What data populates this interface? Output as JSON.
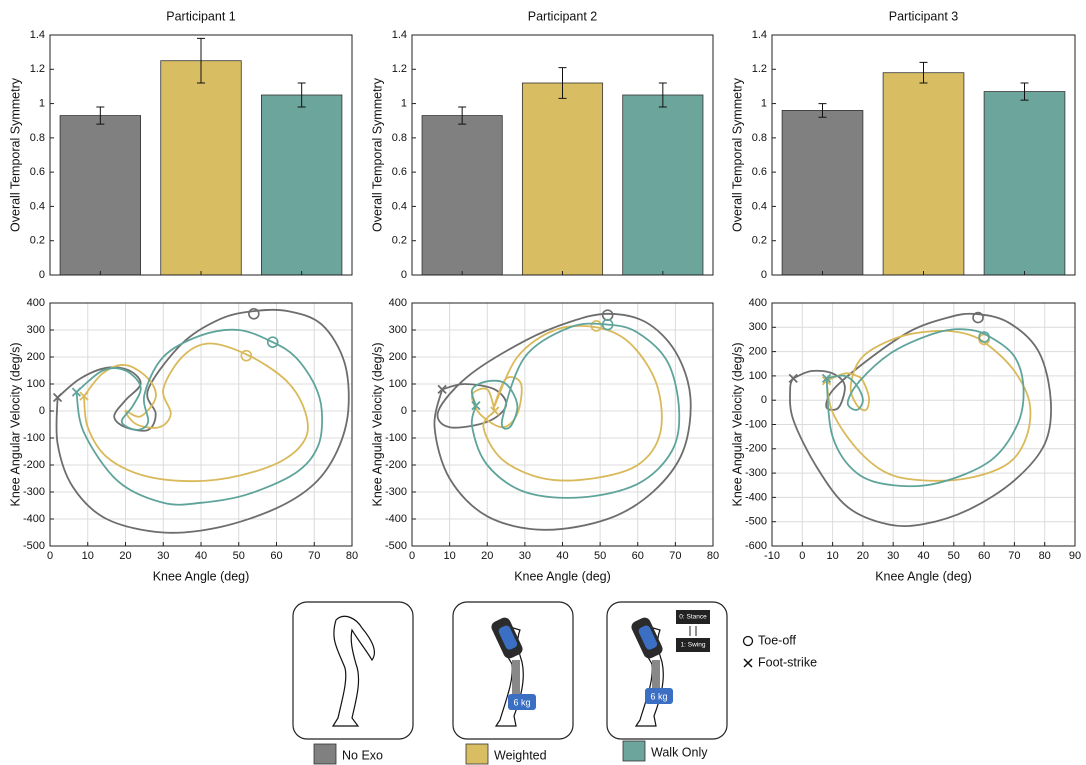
{
  "chart_data": [
    {
      "type": "bar",
      "title": "Participant 1",
      "ylabel": "Overall Temporal Symmetry",
      "categories": [
        null,
        null,
        null
      ],
      "values": [
        0.93,
        1.25,
        1.05
      ],
      "errors": [
        0.05,
        0.13,
        0.07
      ],
      "colors": [
        "#808080",
        "#d8bd62",
        "#6ba59c"
      ],
      "ylim": [
        0,
        1.4
      ],
      "yticks": [
        0,
        0.2,
        0.4,
        0.6,
        0.8,
        1,
        1.2,
        1.4
      ]
    },
    {
      "type": "bar",
      "title": "Participant 2",
      "ylabel": "Overall Temporal Symmetry",
      "categories": [
        null,
        null,
        null
      ],
      "values": [
        0.93,
        1.12,
        1.05
      ],
      "errors": [
        0.05,
        0.09,
        0.07
      ],
      "colors": [
        "#808080",
        "#d8bd62",
        "#6ba59c"
      ],
      "ylim": [
        0,
        1.4
      ],
      "yticks": [
        0,
        0.2,
        0.4,
        0.6,
        0.8,
        1,
        1.2,
        1.4
      ]
    },
    {
      "type": "bar",
      "title": "Participant 3",
      "ylabel": "Overall Temporal Symmetry",
      "categories": [
        null,
        null,
        null
      ],
      "values": [
        0.96,
        1.18,
        1.07
      ],
      "errors": [
        0.04,
        0.06,
        0.05
      ],
      "colors": [
        "#808080",
        "#d8bd62",
        "#6ba59c"
      ],
      "ylim": [
        0,
        1.4
      ],
      "yticks": [
        0,
        0.2,
        0.4,
        0.6,
        0.8,
        1,
        1.2,
        1.4
      ]
    },
    {
      "type": "line",
      "xlabel": "Knee Angle (deg)",
      "ylabel": "Knee Angular Velocity (deg/s)",
      "grid": true,
      "xlim": [
        0,
        80
      ],
      "xticks": [
        0,
        10,
        20,
        30,
        40,
        50,
        60,
        70,
        80
      ],
      "ylim": [
        -500,
        400
      ],
      "yticks": [
        -500,
        -400,
        -300,
        -200,
        -100,
        0,
        100,
        200,
        300,
        400
      ],
      "series": [
        {
          "color": "#6d6d6d",
          "x": [
            2,
            8,
            15,
            21,
            24,
            20,
            17,
            20,
            26,
            28,
            26,
            35,
            45,
            54,
            63,
            72,
            78,
            79,
            76,
            70,
            60,
            45,
            30,
            15,
            6,
            2,
            2
          ],
          "values": [
            50,
            120,
            160,
            150,
            100,
            40,
            -20,
            -60,
            -70,
            -10,
            80,
            250,
            340,
            370,
            370,
            320,
            180,
            0,
            -150,
            -270,
            -360,
            -430,
            -450,
            -400,
            -280,
            -120,
            50
          ],
          "toe_off": {
            "x": 54,
            "y": 360
          },
          "foot_strike": {
            "x": 2,
            "y": 50
          }
        },
        {
          "color": "#d9b95a",
          "x": [
            9,
            14,
            20,
            26,
            28,
            24,
            20,
            23,
            29,
            32,
            30,
            35,
            42,
            52,
            62,
            67,
            68,
            62,
            50,
            38,
            25,
            15,
            10,
            9
          ],
          "values": [
            55,
            140,
            170,
            120,
            50,
            -20,
            0,
            -50,
            -60,
            -10,
            80,
            200,
            250,
            210,
            120,
            20,
            -90,
            -180,
            -240,
            -260,
            -240,
            -170,
            -60,
            55
          ],
          "toe_off": {
            "x": 52,
            "y": 205
          },
          "foot_strike": {
            "x": 9,
            "y": 55
          }
        },
        {
          "color": "#5fa49b",
          "x": [
            7,
            14,
            20,
            24,
            22,
            19,
            23,
            26,
            25,
            30,
            40,
            50,
            59,
            65,
            70,
            72,
            71,
            65,
            52,
            40,
            30,
            18,
            9,
            7
          ],
          "values": [
            70,
            150,
            150,
            90,
            20,
            -40,
            -70,
            -40,
            60,
            200,
            280,
            300,
            255,
            200,
            100,
            0,
            -130,
            -230,
            -310,
            -340,
            -340,
            -260,
            -80,
            70
          ],
          "toe_off": {
            "x": 59,
            "y": 255
          },
          "foot_strike": {
            "x": 7,
            "y": 70
          }
        }
      ]
    },
    {
      "type": "line",
      "xlabel": "Knee Angle (deg)",
      "ylabel": "Knee Angular Velocity (deg/s)",
      "grid": true,
      "xlim": [
        0,
        80
      ],
      "xticks": [
        0,
        10,
        20,
        30,
        40,
        50,
        60,
        70,
        80
      ],
      "ylim": [
        -500,
        400
      ],
      "yticks": [
        -500,
        -400,
        -300,
        -200,
        -100,
        0,
        100,
        200,
        300,
        400
      ],
      "series": [
        {
          "color": "#6d6d6d",
          "x": [
            8,
            14,
            22,
            25,
            20,
            10,
            7,
            15,
            30,
            42,
            52,
            62,
            70,
            74,
            72,
            64,
            52,
            35,
            20,
            10,
            6,
            8
          ],
          "values": [
            80,
            100,
            80,
            20,
            -40,
            -60,
            0,
            130,
            260,
            330,
            360,
            330,
            220,
            50,
            -150,
            -300,
            -400,
            -440,
            -390,
            -250,
            -60,
            80
          ],
          "toe_off": {
            "x": 52,
            "y": 355
          },
          "foot_strike": {
            "x": 8,
            "y": 80
          }
        },
        {
          "color": "#d9b95a",
          "x": [
            22,
            20,
            16,
            18,
            24,
            28,
            29,
            25,
            22,
            28,
            38,
            49,
            58,
            65,
            66,
            60,
            48,
            35,
            24,
            19,
            22
          ],
          "values": [
            0,
            80,
            60,
            -10,
            -60,
            -10,
            100,
            120,
            20,
            200,
            300,
            310,
            250,
            100,
            -80,
            -200,
            -250,
            -250,
            -180,
            -60,
            0
          ],
          "toe_off": {
            "x": 49,
            "y": 315
          },
          "foot_strike": {
            "x": 22,
            "y": 0
          }
        },
        {
          "color": "#5fa49b",
          "x": [
            17,
            16,
            20,
            25,
            28,
            26,
            24,
            30,
            42,
            52,
            60,
            68,
            71,
            69,
            60,
            45,
            30,
            20,
            16,
            17
          ],
          "values": [
            20,
            80,
            110,
            100,
            20,
            -60,
            -30,
            200,
            310,
            320,
            290,
            180,
            0,
            -150,
            -270,
            -320,
            -300,
            -200,
            -60,
            20
          ],
          "toe_off": {
            "x": 52,
            "y": 320
          },
          "foot_strike": {
            "x": 17,
            "y": 20
          }
        }
      ]
    },
    {
      "type": "line",
      "xlabel": "Knee Angle (deg)",
      "ylabel": "Knee Angular Velocity (deg/s)",
      "grid": true,
      "xlim": [
        -10,
        90
      ],
      "xticks": [
        -10,
        0,
        10,
        20,
        30,
        40,
        50,
        60,
        70,
        80,
        90
      ],
      "ylim": [
        -600,
        400
      ],
      "yticks": [
        -600,
        -500,
        -400,
        -300,
        -200,
        -100,
        0,
        100,
        200,
        300,
        400
      ],
      "series": [
        {
          "color": "#6d6d6d",
          "x": [
            -3,
            3,
            10,
            14,
            12,
            8,
            10,
            20,
            35,
            48,
            57,
            68,
            78,
            82,
            80,
            70,
            55,
            40,
            28,
            15,
            5,
            -3,
            -4,
            -3
          ],
          "values": [
            90,
            120,
            110,
            60,
            -30,
            -30,
            40,
            150,
            280,
            340,
            355,
            320,
            200,
            0,
            -180,
            -330,
            -450,
            -510,
            -510,
            -440,
            -280,
            -80,
            50,
            90
          ],
          "toe_off": {
            "x": 58,
            "y": 340
          },
          "foot_strike": {
            "x": -3,
            "y": 90
          }
        },
        {
          "color": "#d9b95a",
          "x": [
            8,
            14,
            18,
            20,
            22,
            21,
            18,
            16,
            20,
            32,
            45,
            55,
            62,
            70,
            75,
            74,
            68,
            55,
            40,
            28,
            18,
            10,
            8
          ],
          "values": [
            80,
            110,
            100,
            80,
            10,
            -40,
            -20,
            60,
            180,
            260,
            285,
            270,
            220,
            120,
            -10,
            -150,
            -260,
            -320,
            -330,
            -300,
            -200,
            -50,
            80
          ],
          "toe_off": {
            "x": 60,
            "y": 250
          },
          "foot_strike": {
            "x": 8,
            "y": 80
          }
        },
        {
          "color": "#5fa49b",
          "x": [
            8,
            14,
            18,
            20,
            18,
            15,
            19,
            30,
            45,
            55,
            62,
            70,
            73,
            71,
            62,
            45,
            30,
            18,
            10,
            8
          ],
          "values": [
            90,
            100,
            60,
            0,
            -40,
            -10,
            80,
            200,
            280,
            290,
            260,
            180,
            50,
            -100,
            -250,
            -340,
            -350,
            -300,
            -150,
            90
          ],
          "toe_off": {
            "x": 60,
            "y": 260
          },
          "foot_strike": {
            "x": 8,
            "y": 90
          }
        }
      ]
    }
  ],
  "legend": {
    "items": [
      {
        "name": "No Exo",
        "color": "#808080"
      },
      {
        "name": "Weighted",
        "color": "#d8bd62"
      },
      {
        "name": "Walk Only",
        "color": "#6ba59c"
      }
    ],
    "toe_off": "Toe-off",
    "foot_strike": "Foot-strike"
  },
  "illustrations": {
    "weight": "6 kg",
    "states": [
      "0: Stance",
      "1: Swing"
    ]
  }
}
